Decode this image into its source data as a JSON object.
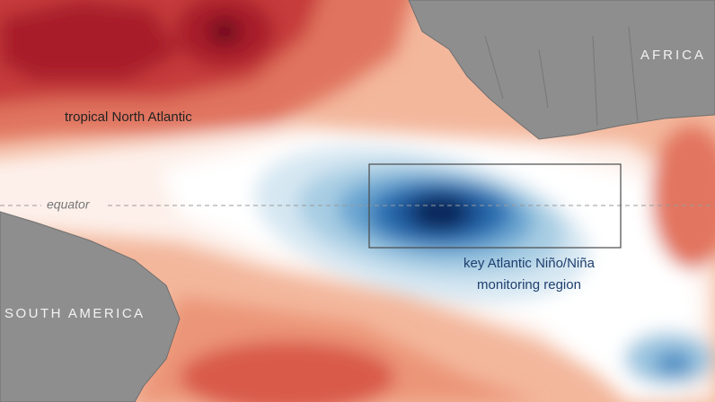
{
  "labels": {
    "north_atlantic": "tropical North Atlantic",
    "equator": "equator",
    "africa": "AFRICA",
    "south_america": "SOUTH AMERICA",
    "region_line1": "key Atlantic Niño/Niña",
    "region_line2": "monitoring region"
  }
}
